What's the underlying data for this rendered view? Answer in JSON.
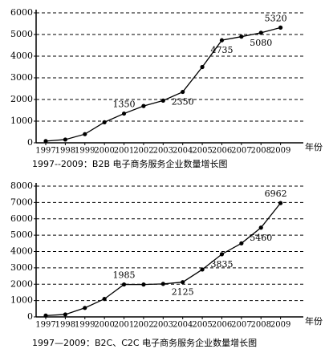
{
  "chart_data": [
    {
      "type": "line",
      "title": "1997--2009：B2B 电子商务服务企业数量增长图",
      "xlabel": "年份",
      "categories": [
        "1997",
        "1998",
        "1999",
        "2000",
        "2001",
        "2002",
        "2003",
        "2004",
        "2005",
        "2006",
        "2007",
        "2008",
        "2009"
      ],
      "values": [
        80,
        150,
        400,
        950,
        1350,
        1700,
        1950,
        2350,
        3500,
        4735,
        4900,
        5080,
        5320
      ],
      "value_labels": [
        null,
        null,
        null,
        null,
        "1350",
        null,
        null,
        "2350",
        null,
        "4735",
        null,
        "5080",
        "5320"
      ],
      "color": "#000000",
      "ylim": [
        0,
        6000
      ],
      "yticks": [
        0,
        1000,
        2000,
        3000,
        4000,
        5000,
        6000
      ],
      "grid": true
    },
    {
      "type": "line",
      "title": "1997—2009：B2C、C2C 电子商务服务企业数量增长图",
      "xlabel": "年份",
      "categories": [
        "1997",
        "1998",
        "1999",
        "2000",
        "2001",
        "2002",
        "2003",
        "2004",
        "2005",
        "2006",
        "2007",
        "2008",
        "2009"
      ],
      "values": [
        80,
        150,
        550,
        1100,
        1985,
        1980,
        2020,
        2125,
        2900,
        3835,
        4500,
        5460,
        6962
      ],
      "value_labels": [
        null,
        null,
        null,
        null,
        "1985",
        null,
        null,
        "2125",
        null,
        "3835",
        null,
        "5460",
        "6962"
      ],
      "color": "#000000",
      "ylim": [
        0,
        8000
      ],
      "yticks": [
        0,
        1000,
        2000,
        3000,
        4000,
        5000,
        6000,
        7000,
        8000
      ],
      "grid": true
    }
  ]
}
